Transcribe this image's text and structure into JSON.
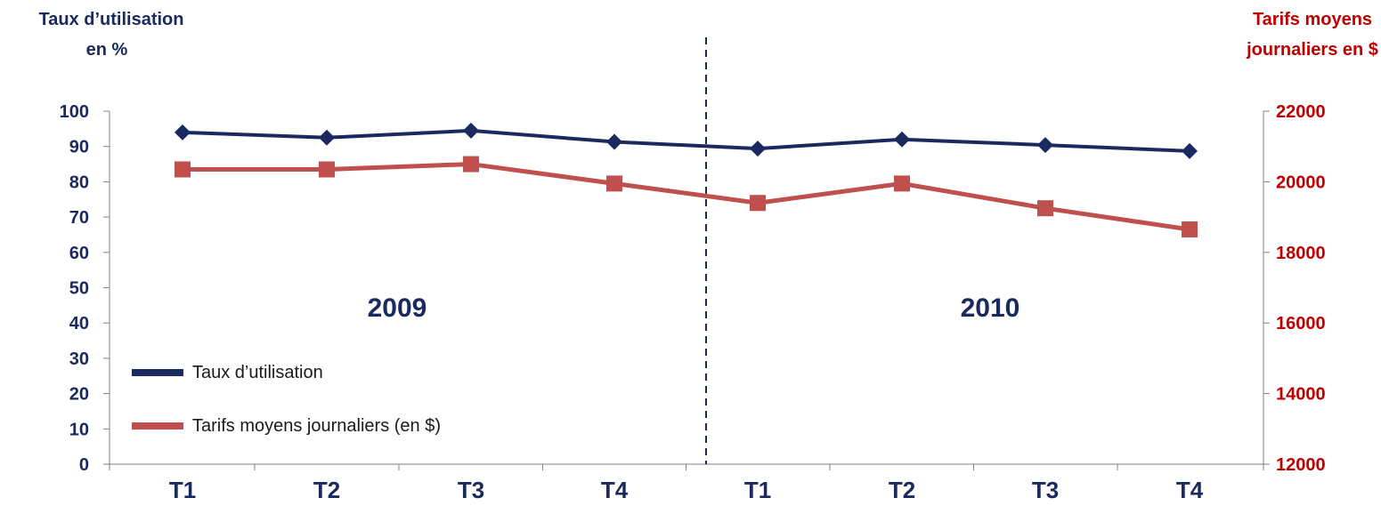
{
  "chart_data": {
    "type": "line",
    "left_axis_title": [
      "Taux d’utilisation",
      "en %"
    ],
    "right_axis_title": [
      "Tarifs moyens",
      "journaliers en $"
    ],
    "categories": [
      "T1",
      "T2",
      "T3",
      "T4",
      "T1",
      "T2",
      "T3",
      "T4"
    ],
    "year_labels": [
      "2009",
      "2010"
    ],
    "y_left": {
      "min": 0,
      "max": 100,
      "step": 10
    },
    "y_right": {
      "min": 12000,
      "max": 22000,
      "step": 2000
    },
    "series": [
      {
        "name": "Taux d’utilisation",
        "axis": "left",
        "color": "#1a2a5e",
        "marker": "diamond",
        "values": [
          94,
          92.5,
          94.5,
          91.3,
          89.4,
          92,
          90.4,
          88.7
        ]
      },
      {
        "name": "Tarifs moyens journaliers (en $)",
        "axis": "right",
        "color": "#c0504d",
        "marker": "square",
        "values": [
          20350,
          20350,
          20500,
          19950,
          19400,
          19950,
          19250,
          18650
        ]
      }
    ],
    "grid": false,
    "legend_position": "bottom-left",
    "divider": "dashed vertical line between 2009 and 2010"
  }
}
